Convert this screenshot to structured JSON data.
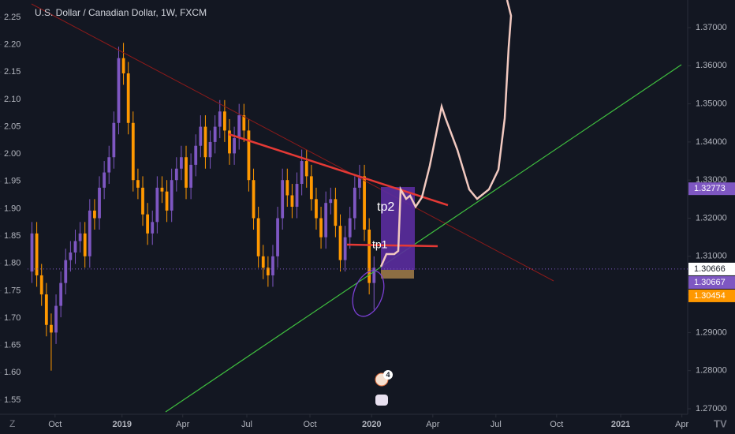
{
  "chart_data": {
    "type": "candlestick",
    "title": "U.S. Dollar / Canadian Dollar, 1W, FXCM",
    "open": [
      1.306,
      1.316,
      1.305,
      1.3,
      1.292,
      1.29,
      1.297,
      1.303,
      1.309,
      1.311,
      1.314,
      1.316,
      1.31,
      1.322,
      1.32,
      1.328,
      1.332,
      1.336,
      1.345,
      1.362,
      1.358,
      1.345,
      1.33,
      1.328,
      1.321,
      1.316,
      1.319,
      1.328,
      1.327,
      1.322,
      1.33,
      1.333,
      1.336,
      1.328,
      1.334,
      1.339,
      1.344,
      1.336,
      1.34,
      1.344,
      1.348,
      1.343,
      1.337,
      1.341,
      1.347,
      1.343,
      1.33,
      1.32,
      1.31,
      1.307,
      1.305,
      1.31,
      1.32,
      1.33,
      1.326,
      1.323,
      1.329,
      1.335,
      1.331,
      1.325,
      1.32,
      1.315,
      1.324,
      1.325,
      1.318,
      1.309,
      1.315,
      1.32,
      1.328,
      1.331,
      1.317,
      1.303
    ],
    "high": [
      1.319,
      1.319,
      1.308,
      1.303,
      1.295,
      1.3,
      1.306,
      1.312,
      1.314,
      1.317,
      1.319,
      1.319,
      1.325,
      1.325,
      1.331,
      1.335,
      1.339,
      1.348,
      1.365,
      1.366,
      1.361,
      1.348,
      1.333,
      1.331,
      1.324,
      1.322,
      1.331,
      1.331,
      1.33,
      1.333,
      1.336,
      1.339,
      1.339,
      1.337,
      1.342,
      1.347,
      1.347,
      1.343,
      1.347,
      1.351,
      1.351,
      1.346,
      1.344,
      1.35,
      1.35,
      1.346,
      1.333,
      1.323,
      1.313,
      1.31,
      1.313,
      1.323,
      1.333,
      1.333,
      1.329,
      1.332,
      1.338,
      1.338,
      1.334,
      1.328,
      1.323,
      1.327,
      1.328,
      1.328,
      1.321,
      1.318,
      1.323,
      1.331,
      1.334,
      1.334,
      1.32,
      1.31
    ],
    "low": [
      1.303,
      1.302,
      1.297,
      1.289,
      1.28,
      1.287,
      1.294,
      1.3,
      1.306,
      1.308,
      1.311,
      1.307,
      1.307,
      1.317,
      1.317,
      1.325,
      1.329,
      1.333,
      1.342,
      1.355,
      1.342,
      1.327,
      1.325,
      1.318,
      1.313,
      1.313,
      1.316,
      1.324,
      1.319,
      1.319,
      1.327,
      1.33,
      1.325,
      1.325,
      1.331,
      1.336,
      1.333,
      1.333,
      1.337,
      1.341,
      1.34,
      1.334,
      1.334,
      1.338,
      1.34,
      1.327,
      1.317,
      1.307,
      1.304,
      1.302,
      1.302,
      1.307,
      1.317,
      1.323,
      1.32,
      1.32,
      1.326,
      1.328,
      1.322,
      1.317,
      1.312,
      1.312,
      1.321,
      1.315,
      1.306,
      1.306,
      1.312,
      1.317,
      1.325,
      1.314,
      1.3,
      1.296
    ],
    "close": [
      1.316,
      1.305,
      1.3,
      1.292,
      1.29,
      1.297,
      1.303,
      1.309,
      1.311,
      1.314,
      1.316,
      1.31,
      1.322,
      1.32,
      1.328,
      1.332,
      1.336,
      1.345,
      1.362,
      1.358,
      1.345,
      1.33,
      1.328,
      1.321,
      1.316,
      1.319,
      1.328,
      1.327,
      1.322,
      1.33,
      1.333,
      1.336,
      1.328,
      1.334,
      1.339,
      1.344,
      1.336,
      1.34,
      1.344,
      1.348,
      1.343,
      1.337,
      1.341,
      1.347,
      1.343,
      1.33,
      1.32,
      1.31,
      1.307,
      1.305,
      1.31,
      1.32,
      1.33,
      1.326,
      1.323,
      1.329,
      1.335,
      1.331,
      1.325,
      1.32,
      1.315,
      1.324,
      1.325,
      1.318,
      1.309,
      1.315,
      1.32,
      1.328,
      1.331,
      1.317,
      1.303,
      1.307
    ],
    "up_color": "#7e57c2",
    "down_color": "#ff9800",
    "xlim": [
      0,
      137
    ],
    "xticks": [
      {
        "value": 5.7,
        "label": "Oct"
      },
      {
        "value": 19.6,
        "label": "2019"
      },
      {
        "value": 32.2,
        "label": "Apr"
      },
      {
        "value": 45.5,
        "label": "Jul"
      },
      {
        "value": 58.6,
        "label": "Oct"
      },
      {
        "value": 71.4,
        "label": "2020"
      },
      {
        "value": 84.1,
        "label": "Apr"
      },
      {
        "value": 97.2,
        "label": "Jul"
      },
      {
        "value": 109.8,
        "label": "Oct"
      },
      {
        "value": 123.1,
        "label": "2021"
      },
      {
        "value": 135.8,
        "label": "Apr"
      }
    ],
    "ylim": [
      1.26855,
      1.37725
    ],
    "yticks": [
      {
        "value": 1.27,
        "label": "1.27000"
      },
      {
        "value": 1.28,
        "label": "1.28000"
      },
      {
        "value": 1.29,
        "label": "1.29000"
      },
      {
        "value": 1.3,
        "label": "1.30000"
      },
      {
        "value": 1.31,
        "label": "1.31000"
      },
      {
        "value": 1.32,
        "label": "1.32000"
      },
      {
        "value": 1.33,
        "label": "1.33000"
      },
      {
        "value": 1.34,
        "label": "1.34000"
      },
      {
        "value": 1.35,
        "label": "1.35000"
      },
      {
        "value": 1.36,
        "label": "1.36000"
      },
      {
        "value": 1.37,
        "label": "1.37000"
      }
    ],
    "y2lim": [
      1.524,
      2.2817
    ],
    "y2ticks": [
      1.55,
      {
        "value": 1.6,
        "label": "1.60"
      },
      1.65,
      {
        "value": 1.7,
        "label": "1.70"
      },
      1.75,
      {
        "value": 1.8,
        "label": "1.80"
      },
      1.85,
      {
        "value": 1.9,
        "label": "1.90"
      },
      1.95,
      {
        "value": 2,
        "label": "2.00"
      },
      2.05,
      {
        "value": 2.1,
        "label": "2.10"
      },
      2.15,
      {
        "value": 2.2,
        "label": "2.20"
      },
      2.25
    ],
    "price_labels": [
      {
        "value": 1.32773,
        "color": "#7e57c2"
      },
      {
        "value": 1.30666,
        "color": "#ffffff"
      },
      {
        "value": 1.30667,
        "color": "#7e57c2"
      },
      {
        "value": 1.30454,
        "color": "#ff9800"
      }
    ],
    "annotations": [
      "tp1",
      "tp2"
    ],
    "badge": "4",
    "grid": false
  }
}
